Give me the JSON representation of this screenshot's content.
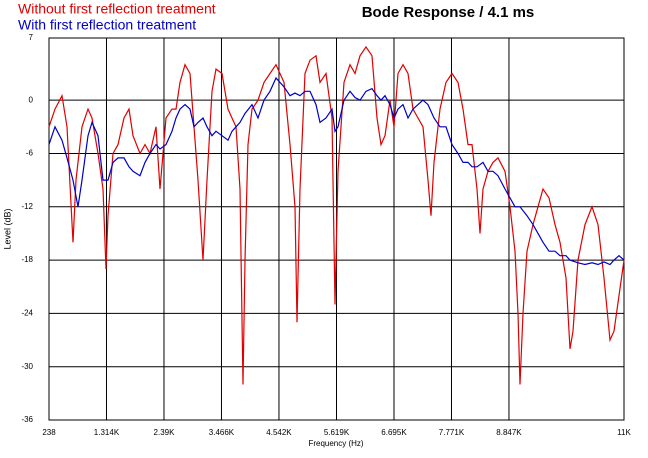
{
  "chart_data": {
    "type": "line",
    "title": "Bode Response / 4.1 ms",
    "x_label": "Frequency (Hz)",
    "y_label": "Level (dB)",
    "xlim": [
      238,
      11000
    ],
    "xticks": [
      238,
      {
        "value": 1314,
        "label": "1.314K"
      },
      {
        "value": 2390,
        "label": "2.39K"
      },
      {
        "value": 3466,
        "label": "3.466K"
      },
      {
        "value": 4542,
        "label": "4.542K"
      },
      {
        "value": 5619,
        "label": "5.619K"
      },
      {
        "value": 6695,
        "label": "6.695K"
      },
      {
        "value": 7771,
        "label": "7.771K"
      },
      {
        "value": 8847,
        "label": "8.847K"
      },
      {
        "value": 11000,
        "label": "11K"
      }
    ],
    "ylim": [
      -36,
      7
    ],
    "yticks": [
      7,
      0,
      -6,
      -12,
      -18,
      -24,
      -30,
      -36
    ],
    "grid": true,
    "legend": "top-left",
    "series": [
      {
        "name": "Without first reflection treatment",
        "color": "#e00000",
        "x": [
          238,
          350,
          481,
          575,
          687,
          743,
          856,
          968,
          1043,
          1155,
          1249,
          1305,
          1342,
          1436,
          1529,
          1642,
          1735,
          1810,
          1941,
          2035,
          2128,
          2241,
          2316,
          2428,
          2540,
          2615,
          2690,
          2784,
          2877,
          2952,
          3027,
          3120,
          3195,
          3289,
          3364,
          3476,
          3588,
          3663,
          3738,
          3813,
          3869,
          3907,
          3963,
          4038,
          4150,
          4262,
          4374,
          4487,
          4636,
          4749,
          4842,
          4880,
          4936,
          5030,
          5123,
          5235,
          5310,
          5423,
          5535,
          5591,
          5647,
          5760,
          5872,
          5965,
          6059,
          6171,
          6284,
          6377,
          6452,
          6527,
          6620,
          6695,
          6770,
          6864,
          6957,
          7051,
          7145,
          7238,
          7332,
          7388,
          7444,
          7556,
          7669,
          7781,
          7893,
          7987,
          8080,
          8155,
          8249,
          8305,
          8361,
          8455,
          8548,
          8642,
          8773,
          8867,
          8960,
          9016,
          9054,
          9110,
          9185,
          9297,
          9391,
          9484,
          9597,
          9709,
          9802,
          9915,
          9990,
          10046,
          10139,
          10270,
          10401,
          10514,
          10626,
          10738,
          10813,
          10907,
          11000
        ],
        "values": [
          -3,
          -1,
          0.5,
          -3,
          -16,
          -9,
          -3,
          -1,
          -2,
          -6,
          -10,
          -19,
          -13,
          -6,
          -5,
          -2,
          -1,
          -4,
          -6,
          -5,
          -6,
          -3,
          -10,
          -2,
          -1,
          -1,
          2,
          4,
          3,
          -3,
          -9,
          -18,
          -9,
          1,
          3.5,
          3,
          -1,
          -2,
          -3,
          -10,
          -32,
          -18,
          -5,
          -1,
          0,
          2,
          3,
          4,
          2,
          -5,
          -12,
          -25,
          -10,
          3,
          4.5,
          5,
          2,
          3,
          -2,
          -23,
          -8,
          2,
          4,
          3,
          5,
          6,
          5,
          -2,
          -5,
          -4,
          0,
          -3,
          3,
          4,
          3,
          -1,
          -2,
          -3,
          -9,
          -13,
          -7,
          -1,
          2,
          3,
          2,
          -1,
          -5,
          -5,
          -10,
          -15,
          -10,
          -8,
          -7,
          -6.5,
          -8,
          -12,
          -17,
          -24,
          -32,
          -24,
          -17,
          -14,
          -12,
          -10,
          -11,
          -14,
          -16,
          -20,
          -28,
          -26,
          -18,
          -14,
          -12,
          -14,
          -20,
          -27,
          -26,
          -22,
          -18
        ]
      },
      {
        "name": "With first reflection treatment",
        "color": "#0000c8",
        "x": [
          238,
          350,
          481,
          575,
          687,
          781,
          856,
          968,
          1043,
          1155,
          1249,
          1342,
          1436,
          1529,
          1642,
          1735,
          1810,
          1941,
          2035,
          2128,
          2241,
          2316,
          2428,
          2540,
          2615,
          2690,
          2784,
          2877,
          2952,
          3027,
          3120,
          3195,
          3289,
          3364,
          3476,
          3588,
          3663,
          3738,
          3813,
          3907,
          4038,
          4150,
          4262,
          4374,
          4487,
          4636,
          4749,
          4842,
          4936,
          5030,
          5123,
          5235,
          5310,
          5423,
          5535,
          5591,
          5647,
          5760,
          5872,
          5965,
          6059,
          6171,
          6284,
          6377,
          6452,
          6527,
          6620,
          6695,
          6770,
          6864,
          6957,
          7051,
          7145,
          7238,
          7332,
          7444,
          7556,
          7669,
          7781,
          7893,
          7987,
          8080,
          8155,
          8249,
          8361,
          8455,
          8548,
          8642,
          8773,
          8867,
          8960,
          9054,
          9185,
          9297,
          9391,
          9484,
          9597,
          9709,
          9802,
          9915,
          9990,
          10139,
          10270,
          10401,
          10514,
          10626,
          10738,
          10813,
          10907,
          11000
        ],
        "values": [
          -5,
          -3,
          -4.5,
          -6.5,
          -9,
          -12,
          -9,
          -4,
          -2.5,
          -4,
          -9,
          -9,
          -7,
          -6.5,
          -6.5,
          -7.5,
          -8,
          -8.5,
          -7,
          -6,
          -5,
          -5.5,
          -5,
          -3.5,
          -2,
          -1,
          -0.5,
          -1,
          -3,
          -2.5,
          -2,
          -3,
          -4,
          -3.5,
          -4,
          -4.5,
          -3.5,
          -3,
          -2.5,
          -1.5,
          -0.5,
          -2,
          0,
          1,
          2.5,
          1.5,
          0.5,
          0.8,
          0.5,
          1,
          1,
          -0.5,
          -2.5,
          -2,
          -1,
          -3.5,
          -3,
          0,
          1,
          0.3,
          0,
          1,
          1.3,
          0.5,
          0,
          0.5,
          -0.5,
          -2,
          -1,
          -0.5,
          -2,
          -1,
          -0.5,
          0,
          -0.5,
          -2,
          -3,
          -3,
          -5,
          -6,
          -7,
          -7,
          -7.5,
          -7.5,
          -7,
          -8,
          -8,
          -8.5,
          -10,
          -11,
          -12,
          -12,
          -13,
          -14,
          -15,
          -16,
          -17,
          -17,
          -17.5,
          -17.5,
          -18,
          -18.3,
          -18.5,
          -18.3,
          -18.5,
          -18.2,
          -18.5,
          -18,
          -17.5,
          -18
        ]
      }
    ]
  }
}
